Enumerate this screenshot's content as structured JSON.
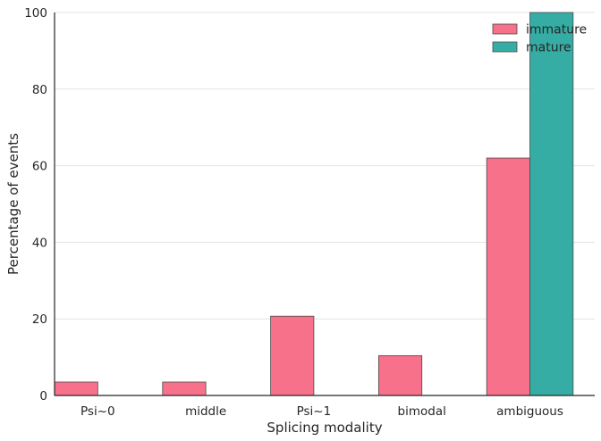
{
  "chart_data": {
    "type": "bar",
    "title": "",
    "xlabel": "Splicing modality",
    "ylabel": "Percentage of events",
    "categories": [
      "Psi~0",
      "middle",
      "Psi~1",
      "bimodal",
      "ambiguous"
    ],
    "series": [
      {
        "name": "immature",
        "color": "#f7718a",
        "values": [
          3.5,
          3.5,
          20.7,
          10.4,
          62.0
        ]
      },
      {
        "name": "mature",
        "color": "#36ada4",
        "values": [
          0,
          0,
          0,
          0,
          100
        ]
      }
    ],
    "ylim": [
      0,
      100
    ],
    "yticks": [
      0,
      20,
      40,
      60,
      80,
      100
    ],
    "grid": "horizontal",
    "legend_position": "top-right"
  }
}
